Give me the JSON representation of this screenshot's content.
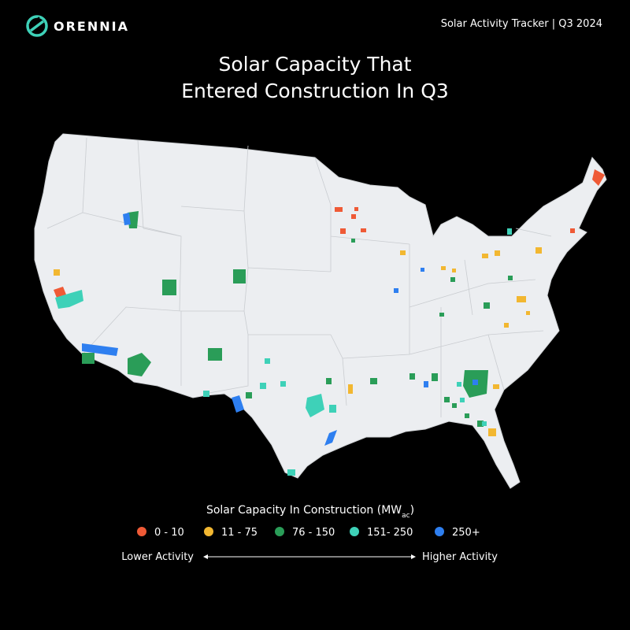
{
  "header": {
    "brand": "ORENNIA",
    "tracker": "Solar Activity Tracker | Q3 2024"
  },
  "title": {
    "line1": "Solar Capacity That",
    "line2": "Entered Construction In Q3"
  },
  "legend": {
    "title": "Solar Capacity In Construction (MW",
    "title_subscript": "ac",
    "title_end": ")",
    "items": [
      {
        "label": "0 - 10",
        "color": "#ef5a36"
      },
      {
        "label": "11 - 75",
        "color": "#f2b731"
      },
      {
        "label": "76 - 150",
        "color": "#2a9d58"
      },
      {
        "label": "151- 250",
        "color": "#3ed1b8"
      },
      {
        "label": "250+",
        "color": "#2e7ff0"
      }
    ]
  },
  "scale": {
    "low": "Lower Activity",
    "high": "Higher Activity"
  }
}
